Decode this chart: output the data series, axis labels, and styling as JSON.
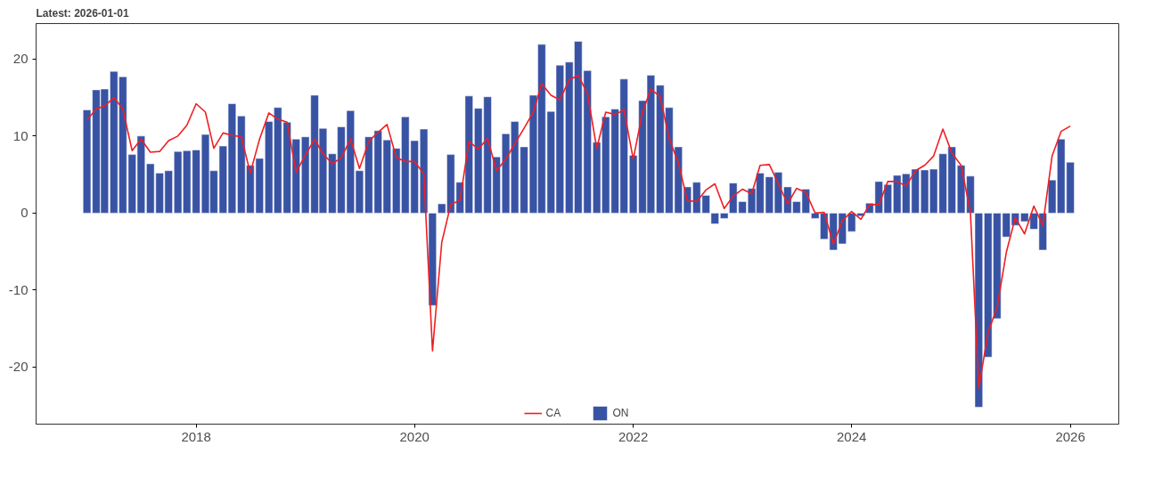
{
  "chart_data": {
    "type": "bar",
    "title": "Latest: 2026-01-01",
    "x": [
      "2017-01",
      "2017-02",
      "2017-03",
      "2017-04",
      "2017-05",
      "2017-06",
      "2017-07",
      "2017-08",
      "2017-09",
      "2017-10",
      "2017-11",
      "2017-12",
      "2018-01",
      "2018-02",
      "2018-03",
      "2018-04",
      "2018-05",
      "2018-06",
      "2018-07",
      "2018-08",
      "2018-09",
      "2018-10",
      "2018-11",
      "2018-12",
      "2019-01",
      "2019-02",
      "2019-03",
      "2019-04",
      "2019-05",
      "2019-06",
      "2019-07",
      "2019-08",
      "2019-09",
      "2019-10",
      "2019-11",
      "2019-12",
      "2020-01",
      "2020-02",
      "2020-03",
      "2020-04",
      "2020-05",
      "2020-06",
      "2020-07",
      "2020-08",
      "2020-09",
      "2020-10",
      "2020-11",
      "2020-12",
      "2021-01",
      "2021-02",
      "2021-03",
      "2021-04",
      "2021-05",
      "2021-06",
      "2021-07",
      "2021-08",
      "2021-09",
      "2021-10",
      "2021-11",
      "2021-12",
      "2022-01",
      "2022-02",
      "2022-03",
      "2022-04",
      "2022-05",
      "2022-06",
      "2022-07",
      "2022-08",
      "2022-09",
      "2022-10",
      "2022-11",
      "2022-12",
      "2023-01",
      "2023-02",
      "2023-03",
      "2023-04",
      "2023-05",
      "2023-06",
      "2023-07",
      "2023-08",
      "2023-09",
      "2023-10",
      "2023-11",
      "2023-12",
      "2024-01",
      "2024-02",
      "2024-03",
      "2024-04",
      "2024-05",
      "2024-06",
      "2024-07",
      "2024-08",
      "2024-09",
      "2024-10",
      "2024-11",
      "2024-12",
      "2025-01",
      "2025-02",
      "2025-03",
      "2025-04",
      "2025-05",
      "2025-06",
      "2025-07",
      "2025-08",
      "2025-09",
      "2025-10",
      "2025-11",
      "2025-12",
      "2026-01"
    ],
    "series": [
      {
        "name": "CA",
        "type": "line",
        "color": "#f01e23",
        "values": [
          12.1,
          13.5,
          13.9,
          15.0,
          13.5,
          8.1,
          9.6,
          7.9,
          8.0,
          9.4,
          10.0,
          11.4,
          14.2,
          13.1,
          8.4,
          10.4,
          10.1,
          9.9,
          5.2,
          9.6,
          13.0,
          12.2,
          11.8,
          5.3,
          7.5,
          9.6,
          7.7,
          6.4,
          7.2,
          9.6,
          5.8,
          9.3,
          10.5,
          11.5,
          7.2,
          6.7,
          6.7,
          5.1,
          -17.9,
          -3.8,
          1.1,
          1.7,
          9.3,
          8.3,
          9.7,
          5.5,
          7.0,
          9.0,
          11.0,
          13.1,
          16.8,
          15.3,
          14.7,
          17.3,
          17.9,
          15.5,
          8.4,
          13.1,
          12.8,
          13.4,
          7.0,
          13.1,
          16.1,
          15.1,
          9.7,
          6.5,
          1.6,
          1.5,
          3.0,
          3.8,
          0.6,
          2.2,
          3.1,
          2.5,
          6.2,
          6.3,
          3.8,
          1.2,
          3.2,
          2.7,
          0.0,
          0.1,
          -4.0,
          -1.0,
          0.2,
          -0.8,
          1.1,
          1.1,
          4.1,
          4.1,
          3.5,
          5.5,
          6.2,
          7.4,
          10.9,
          7.8,
          6.2,
          0.1,
          -22.7,
          -15.5,
          -12.3,
          -5.1,
          -0.6,
          -2.7,
          0.9,
          -1.6,
          7.4,
          10.6,
          11.3
        ]
      },
      {
        "name": "ON",
        "type": "bar",
        "color": "#3953a4",
        "values": [
          13.4,
          16.0,
          16.1,
          18.4,
          17.7,
          7.6,
          10.0,
          6.4,
          5.2,
          5.5,
          8.0,
          8.1,
          8.2,
          10.2,
          5.5,
          8.7,
          14.2,
          12.6,
          6.2,
          7.1,
          11.9,
          13.7,
          11.8,
          9.6,
          9.9,
          15.3,
          11.0,
          7.7,
          11.2,
          13.3,
          5.5,
          9.9,
          10.7,
          9.5,
          8.4,
          12.5,
          9.4,
          10.9,
          -12.0,
          1.2,
          7.6,
          4.0,
          15.2,
          13.6,
          15.1,
          7.3,
          10.3,
          11.9,
          8.6,
          15.3,
          21.9,
          13.2,
          19.2,
          19.6,
          22.3,
          18.5,
          9.2,
          12.5,
          13.5,
          17.4,
          7.5,
          14.6,
          17.9,
          16.6,
          13.7,
          8.6,
          3.4,
          4.0,
          2.3,
          -1.4,
          -0.7,
          3.9,
          1.5,
          3.2,
          5.2,
          4.7,
          5.3,
          3.4,
          1.5,
          3.1,
          -0.7,
          -3.4,
          -4.8,
          -4.0,
          -2.4,
          -0.4,
          1.3,
          4.1,
          3.7,
          4.9,
          5.1,
          5.7,
          5.6,
          5.7,
          7.7,
          8.6,
          6.2,
          4.8,
          -25.2,
          -18.7,
          -13.7,
          -3.1,
          -1.6,
          -1.1,
          -2.1,
          -4.8,
          4.3,
          9.6,
          6.6
        ]
      }
    ],
    "xlim": [
      "2016-07-15",
      "2026-06-12"
    ],
    "xticks": [
      {
        "value": "2018-01-01",
        "label": "2018"
      },
      {
        "value": "2020-01-01",
        "label": "2020"
      },
      {
        "value": "2022-01-01",
        "label": "2022"
      },
      {
        "value": "2024-01-01",
        "label": "2024"
      },
      {
        "value": "2026-01-01",
        "label": "2026"
      }
    ],
    "ylim": [
      -27.4,
      24.6
    ],
    "yticks": [
      -20,
      -10,
      0,
      10,
      20
    ],
    "grid": false,
    "legend": "bottom"
  }
}
